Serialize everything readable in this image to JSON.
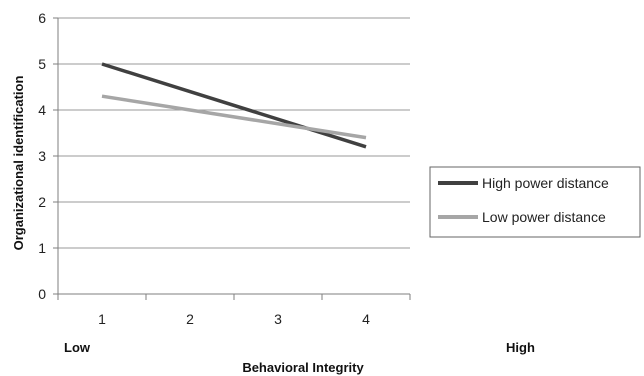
{
  "chart_data": {
    "type": "line",
    "title": "",
    "xlabel": "Behavioral Integrity",
    "ylabel": "Organizational identification",
    "x": [
      1,
      2,
      3,
      4
    ],
    "xlim": [
      0.5,
      4.5
    ],
    "ylim": [
      0,
      6
    ],
    "y_ticks": [
      0,
      1,
      2,
      3,
      4,
      5,
      6
    ],
    "x_ticks": [
      1,
      2,
      3,
      4
    ],
    "grid": true,
    "legend_position": "right",
    "axis_end_labels": {
      "low": "Low",
      "high": "High"
    },
    "series": [
      {
        "name": "High power distance",
        "x": [
          1,
          4
        ],
        "values": [
          5.0,
          3.2
        ],
        "color": "#404040"
      },
      {
        "name": "Low power distance",
        "x": [
          1,
          4
        ],
        "values": [
          4.3,
          3.4
        ],
        "color": "#a6a6a6"
      }
    ]
  }
}
